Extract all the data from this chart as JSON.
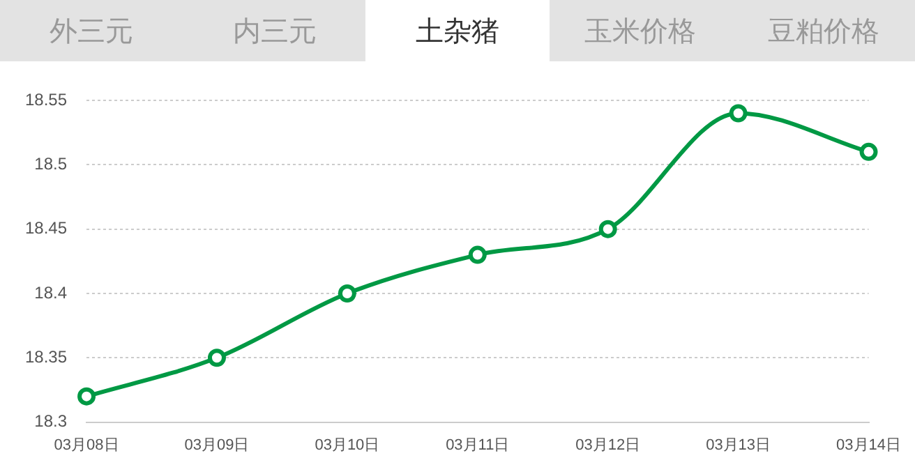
{
  "chart_data": {
    "type": "line",
    "title": "土杂猪",
    "annotations": [
      "外三元",
      "内三元",
      "玉米价格",
      "豆粕价格"
    ],
    "categories": [
      "03月08日",
      "03月09日",
      "03月10日",
      "03月11日",
      "03月12日",
      "03月13日",
      "03月14日"
    ],
    "series": [
      {
        "color": "#009944",
        "values": [
          18.32,
          18.35,
          18.4,
          18.43,
          18.45,
          18.54,
          18.51
        ]
      }
    ],
    "ylim": [
      18.3,
      18.55
    ],
    "yticks": [
      18.3,
      18.35,
      18.4,
      18.45,
      18.5,
      18.55
    ],
    "grid": "y",
    "legend": false,
    "marker": "circle",
    "line_style": "solid"
  }
}
